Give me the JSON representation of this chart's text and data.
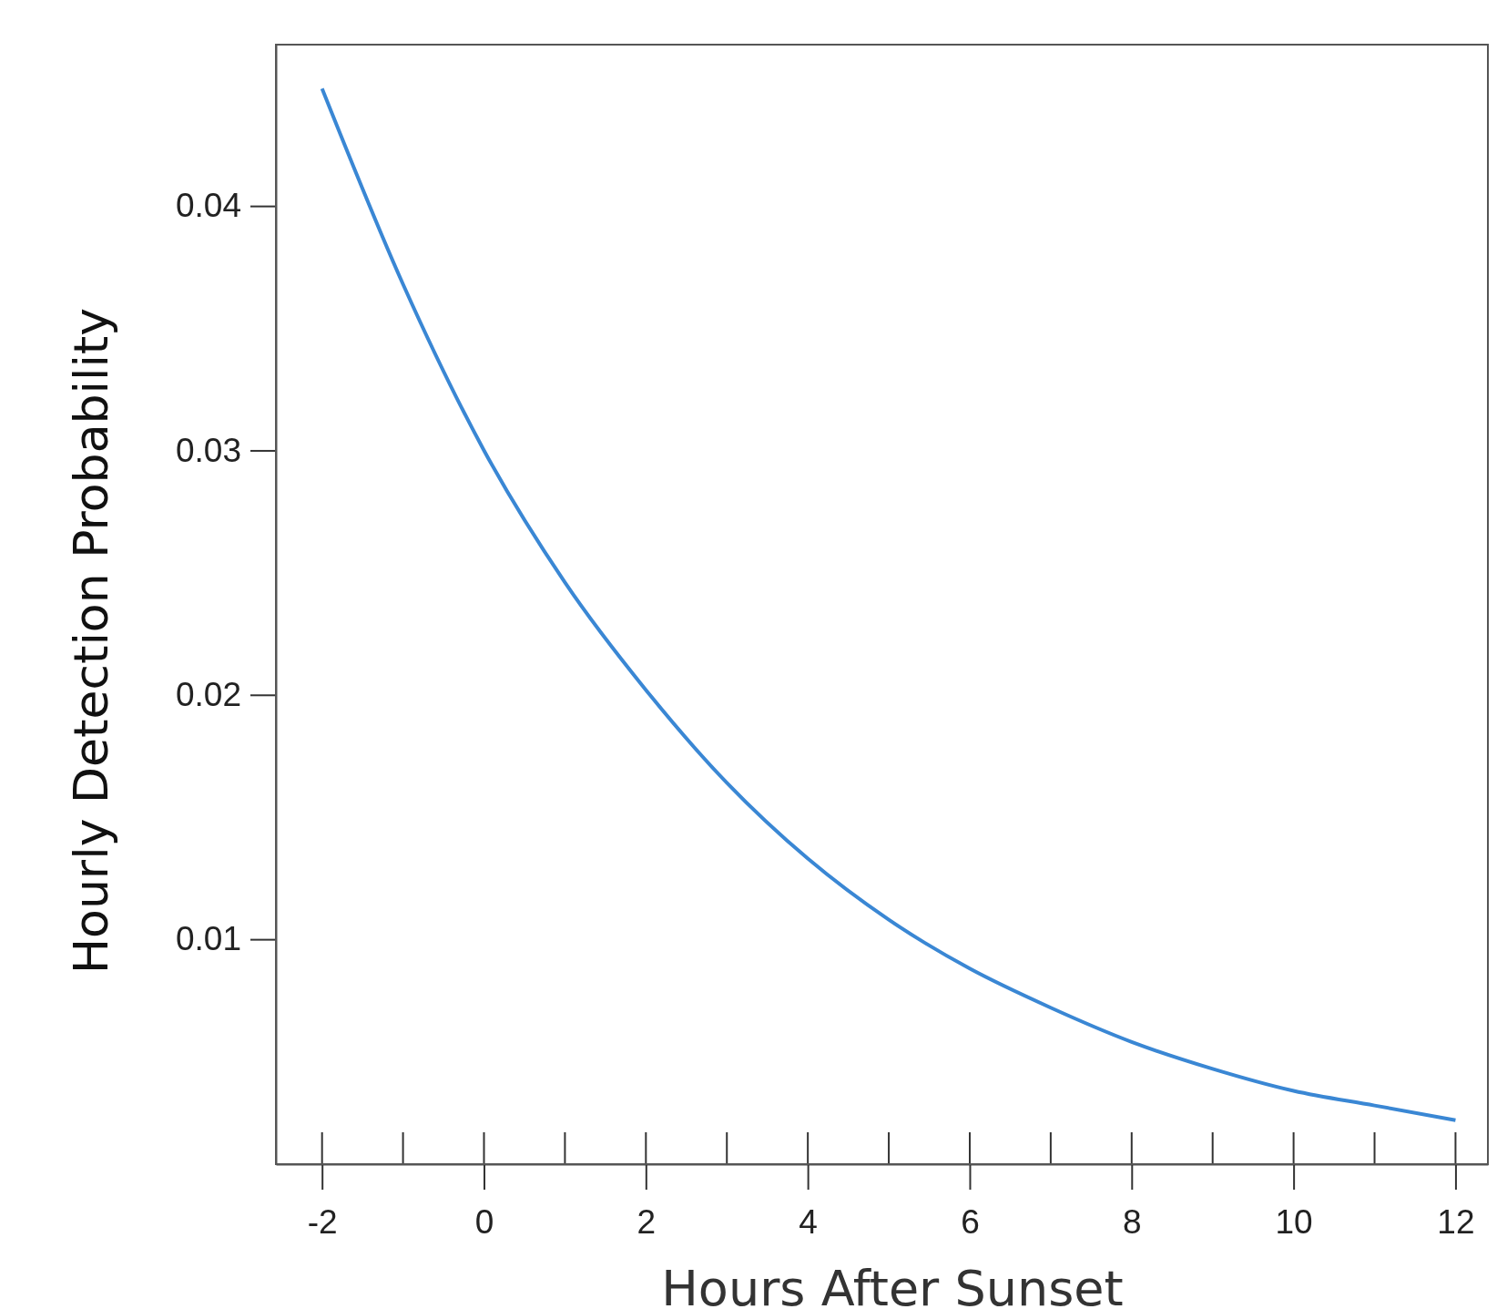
{
  "chart_data": {
    "type": "line",
    "xlabel": "Hours After Sunset",
    "ylabel": "Hourly Detection Probability",
    "x": [
      -2,
      -1,
      0,
      1,
      2,
      3,
      4,
      5,
      6,
      7,
      8,
      9,
      10,
      11,
      12
    ],
    "series": [
      {
        "color": "#3a87d4",
        "values": [
          0.0448,
          0.0368,
          0.03,
          0.0246,
          0.0202,
          0.0164,
          0.0133,
          0.0108,
          0.0088,
          0.0072,
          0.0058,
          0.0047,
          0.0038,
          0.0032,
          0.0026
        ]
      }
    ],
    "xlim": [
      -2.57,
      12.4
    ],
    "ylim": [
      0.0008,
      0.0466
    ],
    "xticks": [
      -2,
      0,
      2,
      4,
      6,
      8,
      10,
      12
    ],
    "yticks": [
      0.01,
      0.02,
      0.03,
      0.04
    ],
    "tick_labels": "xy",
    "grid": false,
    "marker": "none",
    "line_style": "solid"
  }
}
